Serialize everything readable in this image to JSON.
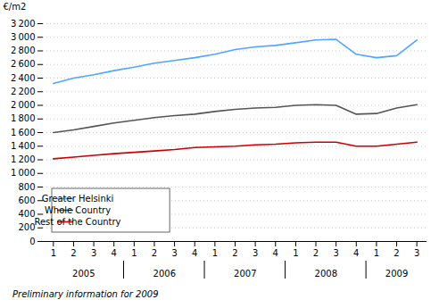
{
  "chart_data": {
    "type": "line",
    "ylabel": "€/m2",
    "footnote": "Preliminary information for 2009",
    "categories": [
      "1",
      "2",
      "3",
      "4",
      "1",
      "2",
      "3",
      "4",
      "1",
      "2",
      "3",
      "4",
      "1",
      "2",
      "3",
      "4",
      "1",
      "2",
      "3"
    ],
    "category_groups": [
      "2005",
      "2005",
      "2005",
      "2005",
      "2006",
      "2006",
      "2006",
      "2006",
      "2007",
      "2007",
      "2007",
      "2007",
      "2008",
      "2008",
      "2008",
      "2008",
      "2009",
      "2009",
      "2009"
    ],
    "series": [
      {
        "name": "Greater Helsinki",
        "color": "#4da6ff",
        "values": [
          2320,
          2400,
          2450,
          2510,
          2560,
          2620,
          2660,
          2700,
          2750,
          2820,
          2860,
          2880,
          2920,
          2960,
          2970,
          2750,
          2700,
          2730,
          2960
        ]
      },
      {
        "name": "Whole Country",
        "color": "#555555",
        "values": [
          1600,
          1640,
          1690,
          1740,
          1780,
          1820,
          1850,
          1870,
          1910,
          1940,
          1960,
          1970,
          2000,
          2010,
          2000,
          1870,
          1880,
          1960,
          2010
        ]
      },
      {
        "name": "Rest of the Country",
        "color": "#cc0000",
        "values": [
          1215,
          1240,
          1265,
          1290,
          1310,
          1330,
          1350,
          1380,
          1390,
          1400,
          1420,
          1430,
          1450,
          1460,
          1460,
          1400,
          1400,
          1430,
          1460
        ]
      }
    ],
    "ylim": [
      0,
      3200
    ],
    "yticks": [
      0,
      200,
      400,
      600,
      800,
      {
        "value": 1000,
        "label": "1 000"
      },
      {
        "value": 1200,
        "label": "1 200"
      },
      {
        "value": 1400,
        "label": "1 400"
      },
      {
        "value": 1600,
        "label": "1 600"
      },
      {
        "value": 1800,
        "label": "1 800"
      },
      {
        "value": 2000,
        "label": "2 000"
      },
      {
        "value": 2200,
        "label": "2 200"
      },
      {
        "value": 2400,
        "label": "2 400"
      },
      {
        "value": 2600,
        "label": "2 600"
      },
      {
        "value": 2800,
        "label": "2 800"
      },
      {
        "value": 3000,
        "label": "3 000"
      },
      {
        "value": 3200,
        "label": "3 200"
      }
    ],
    "grid": true,
    "legend": "lower left"
  }
}
